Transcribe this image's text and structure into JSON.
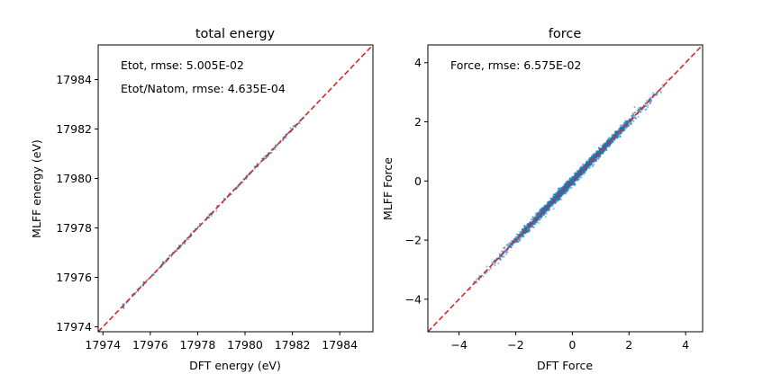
{
  "chart_data": [
    {
      "type": "scatter",
      "title": "total energy",
      "xlabel": "DFT energy (eV)",
      "ylabel": "MLFF energy (eV)",
      "xlim": [
        17973.8,
        17985.4
      ],
      "ylim": [
        17973.8,
        17985.4
      ],
      "xticks": [
        "17974",
        "17976",
        "17978",
        "17980",
        "17982",
        "17984"
      ],
      "yticks": [
        "17974",
        "17976",
        "17978",
        "17980",
        "17982",
        "17984"
      ],
      "annotations": [
        "Etot, rmse: 5.005E-02",
        "Etot/Natom, rmse: 4.635E-04"
      ],
      "reference_line": "y = x",
      "point_range": [
        17974.8,
        17982.5
      ],
      "point_color": "#1f77b4",
      "line_color": "#d62728"
    },
    {
      "type": "scatter",
      "title": "force",
      "xlabel": "DFT Force",
      "ylabel": "MLFF Force",
      "xlim": [
        -5.1,
        4.6
      ],
      "ylim": [
        -5.1,
        4.6
      ],
      "xticks": [
        "−4",
        "−2",
        "0",
        "2",
        "4"
      ],
      "yticks": [
        "−4",
        "−2",
        "0",
        "2",
        "4"
      ],
      "annotations": [
        "Force, rmse: 6.575E-02"
      ],
      "reference_line": "y = x",
      "point_range": [
        -3.8,
        3.5
      ],
      "point_color": "#1f77b4",
      "line_color": "#d62728"
    }
  ]
}
